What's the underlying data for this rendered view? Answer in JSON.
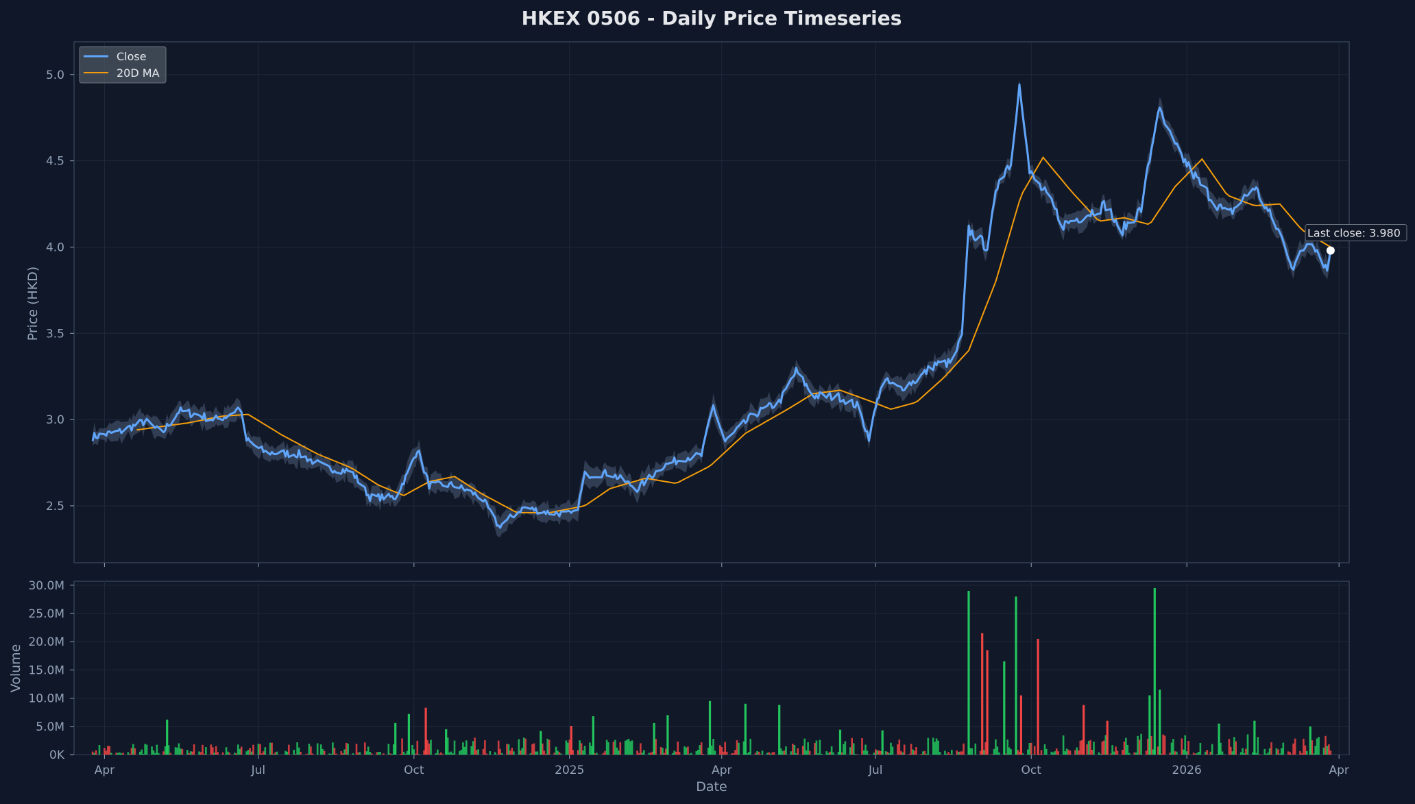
{
  "chart_data": {
    "type": "line",
    "title": "HKEX 0506 - Daily Price Timeseries",
    "xlabel": "Date",
    "ylabel": "Price (HKD)",
    "volume_ylabel": "Volume",
    "x_ticks": [
      "Apr",
      "Jul",
      "Oct",
      "2025",
      "Apr",
      "Jul",
      "Oct",
      "2026",
      "Apr"
    ],
    "x_range": [
      "2024-03-14",
      "2026-04-07"
    ],
    "y_ticks": [
      "2.5",
      "3.0",
      "3.5",
      "4.0",
      "4.5",
      "5.0"
    ],
    "ylim": [
      2.17,
      5.19
    ],
    "volume_ticks": [
      "0K",
      "5.0M",
      "10.0M",
      "15.0M",
      "20.0M",
      "25.0M",
      "30.0M"
    ],
    "volume_ylim": [
      0,
      30.7
    ],
    "volume_unit": "M",
    "legend": {
      "placement": "top-left",
      "entries": [
        "Close",
        "20D MA"
      ]
    },
    "annotation": {
      "text": "Last close: 3.980",
      "date": "2026-03-27",
      "value": 3.98
    },
    "grid": true,
    "colors": {
      "close": "#60a5fa",
      "ma": "#f59e0b",
      "band": "#3b4a63",
      "up": "#22c55e",
      "down": "#ef4444",
      "background": "#0f1729",
      "panel": "#111827"
    },
    "series": [
      {
        "name": "Close",
        "points": [
          [
            "2024-03-25",
            2.9
          ],
          [
            "2024-04-10",
            2.93
          ],
          [
            "2024-04-25",
            2.99
          ],
          [
            "2024-05-05",
            2.92
          ],
          [
            "2024-05-15",
            3.05
          ],
          [
            "2024-05-25",
            3.03
          ],
          [
            "2024-06-05",
            3.0
          ],
          [
            "2024-06-12",
            3.02
          ],
          [
            "2024-06-20",
            3.07
          ],
          [
            "2024-06-24",
            2.88
          ],
          [
            "2024-07-05",
            2.81
          ],
          [
            "2024-07-25",
            2.8
          ],
          [
            "2024-08-10",
            2.72
          ],
          [
            "2024-08-25",
            2.7
          ],
          [
            "2024-09-05",
            2.55
          ],
          [
            "2024-09-20",
            2.55
          ],
          [
            "2024-09-28",
            2.7
          ],
          [
            "2024-10-03",
            2.83
          ],
          [
            "2024-10-10",
            2.62
          ],
          [
            "2024-10-25",
            2.62
          ],
          [
            "2024-11-10",
            2.55
          ],
          [
            "2024-11-20",
            2.38
          ],
          [
            "2024-12-05",
            2.49
          ],
          [
            "2024-12-20",
            2.46
          ],
          [
            "2025-01-05",
            2.45
          ],
          [
            "2025-01-10",
            2.68
          ],
          [
            "2025-01-25",
            2.69
          ],
          [
            "2025-02-10",
            2.6
          ],
          [
            "2025-02-25",
            2.73
          ],
          [
            "2025-03-10",
            2.78
          ],
          [
            "2025-03-20",
            2.79
          ],
          [
            "2025-03-27",
            3.08
          ],
          [
            "2025-04-03",
            2.87
          ],
          [
            "2025-04-20",
            3.03
          ],
          [
            "2025-05-05",
            3.1
          ],
          [
            "2025-05-15",
            3.28
          ],
          [
            "2025-05-25",
            3.14
          ],
          [
            "2025-06-10",
            3.13
          ],
          [
            "2025-06-20",
            3.08
          ],
          [
            "2025-06-27",
            2.9
          ],
          [
            "2025-07-05",
            3.23
          ],
          [
            "2025-07-15",
            3.18
          ],
          [
            "2025-07-25",
            3.23
          ],
          [
            "2025-08-05",
            3.32
          ],
          [
            "2025-08-15",
            3.33
          ],
          [
            "2025-08-21",
            3.48
          ],
          [
            "2025-08-25",
            4.1
          ],
          [
            "2025-09-05",
            4.0
          ],
          [
            "2025-09-12",
            4.41
          ],
          [
            "2025-09-20",
            4.5
          ],
          [
            "2025-09-24",
            4.98
          ],
          [
            "2025-09-30",
            4.43
          ],
          [
            "2025-10-10",
            4.3
          ],
          [
            "2025-10-20",
            4.13
          ],
          [
            "2025-11-05",
            4.2
          ],
          [
            "2025-11-15",
            4.25
          ],
          [
            "2025-11-22",
            4.08
          ],
          [
            "2025-12-05",
            4.22
          ],
          [
            "2025-12-15",
            4.8
          ],
          [
            "2025-12-25",
            4.58
          ],
          [
            "2026-01-10",
            4.35
          ],
          [
            "2026-01-25",
            4.18
          ],
          [
            "2026-02-10",
            4.35
          ],
          [
            "2026-02-25",
            4.08
          ],
          [
            "2026-03-05",
            3.88
          ],
          [
            "2026-03-15",
            4.06
          ],
          [
            "2026-03-25",
            3.87
          ],
          [
            "2026-03-27",
            3.98
          ]
        ]
      },
      {
        "name": "20D MA",
        "points": [
          [
            "2024-04-20",
            2.94
          ],
          [
            "2024-05-20",
            2.98
          ],
          [
            "2024-06-10",
            3.02
          ],
          [
            "2024-06-25",
            3.03
          ],
          [
            "2024-07-15",
            2.91
          ],
          [
            "2024-08-05",
            2.8
          ],
          [
            "2024-08-25",
            2.72
          ],
          [
            "2024-09-10",
            2.62
          ],
          [
            "2024-09-25",
            2.56
          ],
          [
            "2024-10-10",
            2.64
          ],
          [
            "2024-10-25",
            2.67
          ],
          [
            "2024-11-10",
            2.57
          ],
          [
            "2024-12-01",
            2.46
          ],
          [
            "2024-12-20",
            2.46
          ],
          [
            "2025-01-10",
            2.5
          ],
          [
            "2025-01-25",
            2.6
          ],
          [
            "2025-02-15",
            2.66
          ],
          [
            "2025-03-05",
            2.63
          ],
          [
            "2025-03-25",
            2.73
          ],
          [
            "2025-04-15",
            2.92
          ],
          [
            "2025-05-10",
            3.06
          ],
          [
            "2025-05-25",
            3.15
          ],
          [
            "2025-06-10",
            3.17
          ],
          [
            "2025-06-27",
            3.11
          ],
          [
            "2025-07-10",
            3.06
          ],
          [
            "2025-07-25",
            3.1
          ],
          [
            "2025-08-10",
            3.24
          ],
          [
            "2025-08-25",
            3.4
          ],
          [
            "2025-09-10",
            3.8
          ],
          [
            "2025-09-25",
            4.3
          ],
          [
            "2025-10-08",
            4.52
          ],
          [
            "2025-10-25",
            4.32
          ],
          [
            "2025-11-10",
            4.15
          ],
          [
            "2025-11-25",
            4.17
          ],
          [
            "2025-12-10",
            4.13
          ],
          [
            "2025-12-25",
            4.35
          ],
          [
            "2026-01-10",
            4.51
          ],
          [
            "2026-01-25",
            4.3
          ],
          [
            "2026-02-10",
            4.24
          ],
          [
            "2026-02-25",
            4.25
          ],
          [
            "2026-03-10",
            4.1
          ],
          [
            "2026-03-27",
            4.0
          ]
        ]
      }
    ],
    "volume": [
      [
        "2024-05-08",
        6.2,
        "up"
      ],
      [
        "2024-09-20",
        5.6,
        "up"
      ],
      [
        "2024-09-28",
        7.2,
        "up"
      ],
      [
        "2024-10-08",
        8.3,
        "down"
      ],
      [
        "2024-10-20",
        4.5,
        "up"
      ],
      [
        "2024-12-15",
        4.2,
        "up"
      ],
      [
        "2025-01-02",
        5.1,
        "down"
      ],
      [
        "2025-01-15",
        6.8,
        "up"
      ],
      [
        "2025-02-20",
        5.6,
        "up"
      ],
      [
        "2025-02-28",
        7.0,
        "up"
      ],
      [
        "2025-03-25",
        9.5,
        "up"
      ],
      [
        "2025-04-15",
        9.0,
        "up"
      ],
      [
        "2025-05-05",
        8.8,
        "up"
      ],
      [
        "2025-06-10",
        4.4,
        "up"
      ],
      [
        "2025-07-05",
        4.3,
        "up"
      ],
      [
        "2025-08-25",
        29.0,
        "up"
      ],
      [
        "2025-09-02",
        21.5,
        "down"
      ],
      [
        "2025-09-05",
        18.5,
        "down"
      ],
      [
        "2025-09-15",
        16.5,
        "up"
      ],
      [
        "2025-09-22",
        28.0,
        "up"
      ],
      [
        "2025-09-25",
        10.5,
        "down"
      ],
      [
        "2025-10-05",
        20.5,
        "down"
      ],
      [
        "2025-11-01",
        8.8,
        "down"
      ],
      [
        "2025-11-15",
        6.0,
        "down"
      ],
      [
        "2025-12-10",
        10.5,
        "up"
      ],
      [
        "2025-12-13",
        29.5,
        "up"
      ],
      [
        "2025-12-16",
        11.5,
        "up"
      ],
      [
        "2026-01-20",
        5.5,
        "up"
      ],
      [
        "2026-02-10",
        6.0,
        "up"
      ],
      [
        "2026-03-15",
        5.0,
        "up"
      ]
    ]
  }
}
